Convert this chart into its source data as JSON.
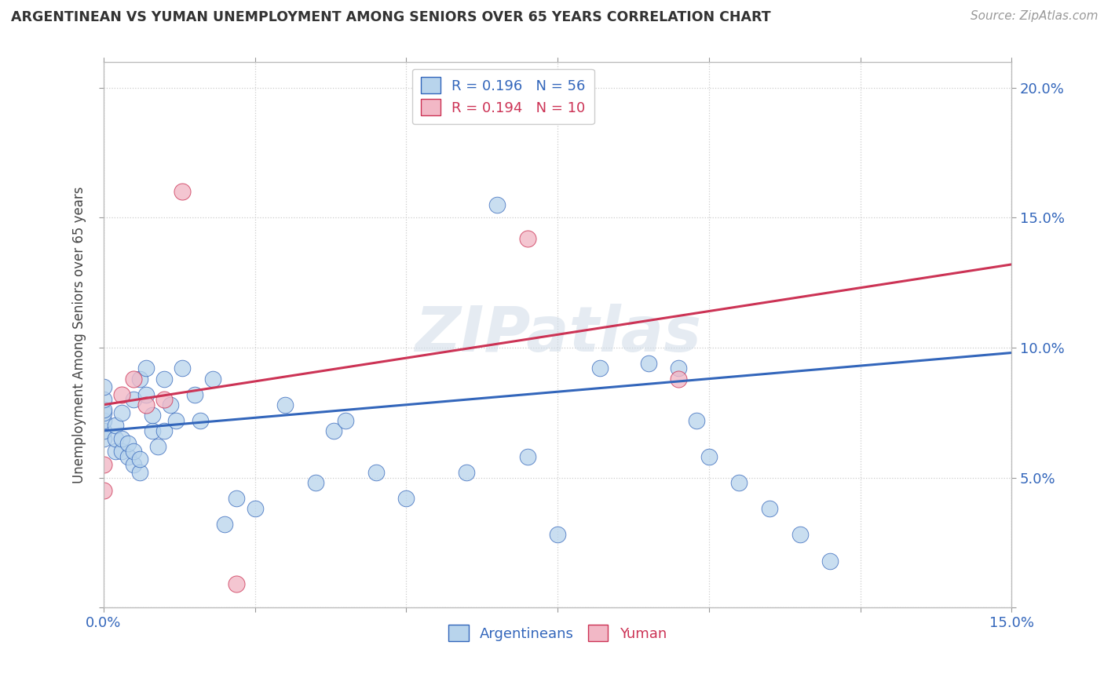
{
  "title": "ARGENTINEAN VS YUMAN UNEMPLOYMENT AMONG SENIORS OVER 65 YEARS CORRELATION CHART",
  "source": "Source: ZipAtlas.com",
  "ylabel": "Unemployment Among Seniors over 65 years",
  "xlim": [
    0.0,
    0.15
  ],
  "ylim": [
    0.0,
    0.21
  ],
  "xticks": [
    0.0,
    0.025,
    0.05,
    0.075,
    0.1,
    0.125,
    0.15
  ],
  "yticks": [
    0.0,
    0.05,
    0.1,
    0.15,
    0.2
  ],
  "xtick_labels_left": [
    "0.0%",
    "",
    "",
    "",
    "",
    "",
    "15.0%"
  ],
  "ytick_labels_left": [
    "",
    "",
    "",
    "",
    ""
  ],
  "ytick_labels_right": [
    "",
    "5.0%",
    "10.0%",
    "15.0%",
    "20.0%"
  ],
  "argentinean_color": "#b8d4ec",
  "yuman_color": "#f2b8c6",
  "line_argentinean_color": "#3366bb",
  "line_yuman_color": "#cc3355",
  "watermark": "ZIPatlas",
  "argentinean_x": [
    0.0,
    0.0,
    0.0,
    0.0,
    0.0,
    0.0,
    0.0,
    0.002,
    0.002,
    0.002,
    0.003,
    0.003,
    0.003,
    0.004,
    0.004,
    0.005,
    0.005,
    0.005,
    0.006,
    0.006,
    0.006,
    0.007,
    0.007,
    0.008,
    0.008,
    0.009,
    0.01,
    0.01,
    0.011,
    0.012,
    0.013,
    0.015,
    0.016,
    0.018,
    0.02,
    0.022,
    0.025,
    0.03,
    0.035,
    0.038,
    0.04,
    0.045,
    0.05,
    0.06,
    0.065,
    0.07,
    0.075,
    0.082,
    0.09,
    0.095,
    0.098,
    0.1,
    0.105,
    0.11,
    0.115,
    0.12
  ],
  "argentinean_y": [
    0.065,
    0.068,
    0.072,
    0.075,
    0.076,
    0.08,
    0.085,
    0.06,
    0.065,
    0.07,
    0.06,
    0.065,
    0.075,
    0.058,
    0.063,
    0.055,
    0.06,
    0.08,
    0.052,
    0.057,
    0.088,
    0.082,
    0.092,
    0.068,
    0.074,
    0.062,
    0.068,
    0.088,
    0.078,
    0.072,
    0.092,
    0.082,
    0.072,
    0.088,
    0.032,
    0.042,
    0.038,
    0.078,
    0.048,
    0.068,
    0.072,
    0.052,
    0.042,
    0.052,
    0.155,
    0.058,
    0.028,
    0.092,
    0.094,
    0.092,
    0.072,
    0.058,
    0.048,
    0.038,
    0.028,
    0.018
  ],
  "yuman_x": [
    0.0,
    0.0,
    0.003,
    0.005,
    0.007,
    0.01,
    0.013,
    0.022,
    0.07,
    0.095
  ],
  "yuman_y": [
    0.055,
    0.045,
    0.082,
    0.088,
    0.078,
    0.08,
    0.16,
    0.009,
    0.142,
    0.088
  ],
  "arg_line_x": [
    0.0,
    0.15
  ],
  "arg_line_y": [
    0.068,
    0.098
  ],
  "yum_line_x": [
    0.0,
    0.15
  ],
  "yum_line_y": [
    0.078,
    0.132
  ]
}
